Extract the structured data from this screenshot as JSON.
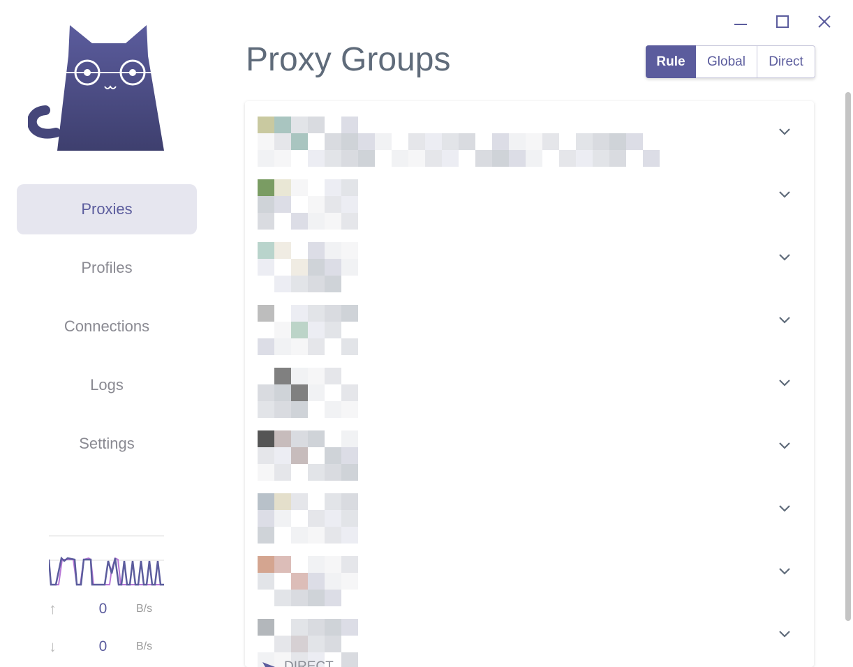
{
  "window": {
    "controls": [
      "minimize-icon",
      "maximize-icon",
      "close-icon"
    ]
  },
  "sidebar": {
    "nav": [
      {
        "label": "Proxies",
        "active": true
      },
      {
        "label": "Profiles"
      },
      {
        "label": "Connections"
      },
      {
        "label": "Logs"
      },
      {
        "label": "Settings"
      }
    ],
    "traffic": {
      "upload_value": "0",
      "upload_unit": "B/s",
      "download_value": "0",
      "download_unit": "B/s"
    }
  },
  "main": {
    "title": "Proxy Groups",
    "modes": [
      {
        "label": "Rule",
        "active": true
      },
      {
        "label": "Global"
      },
      {
        "label": "Direct"
      }
    ],
    "groups_count": 9,
    "last_group_now": "DIRECT"
  },
  "colors": {
    "accent": "#5b5c9d",
    "upload_line": "#b877d6",
    "download_line": "#5b5c9d"
  }
}
